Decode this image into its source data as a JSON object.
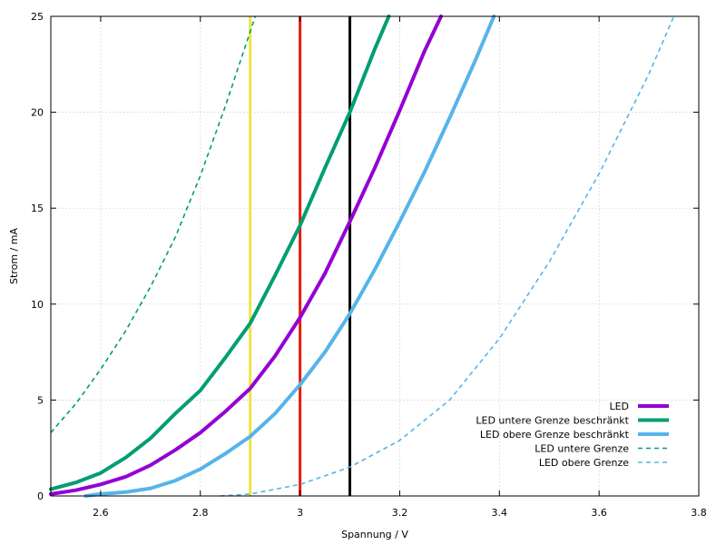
{
  "chart_data": {
    "type": "line",
    "title": "",
    "xlabel": "Spannung / V",
    "ylabel": "Strom / mA",
    "xlim": [
      2.5,
      3.8
    ],
    "ylim": [
      0,
      25
    ],
    "xticks": [
      2.6,
      2.8,
      3,
      3.2,
      3.4,
      3.6,
      3.8
    ],
    "xtick_labels": [
      "2.6",
      "2.8",
      "3",
      "3.2",
      "3.4",
      "3.6",
      "3.8"
    ],
    "yticks": [
      0,
      5,
      10,
      15,
      20,
      25
    ],
    "ytick_labels": [
      "0",
      "5",
      "10",
      "15",
      "20",
      "25"
    ],
    "grid": true,
    "legend_position": "bottom-right",
    "series": [
      {
        "name": "LED",
        "color": "#9400d3",
        "style": "solid",
        "bold": true,
        "x": [
          2.5,
          2.55,
          2.6,
          2.65,
          2.7,
          2.75,
          2.8,
          2.85,
          2.9,
          2.95,
          3.0,
          3.05,
          3.1,
          3.15,
          3.2,
          3.25,
          3.283
        ],
        "y": [
          0.1,
          0.3,
          0.6,
          1.0,
          1.6,
          2.4,
          3.3,
          4.4,
          5.6,
          7.3,
          9.3,
          11.6,
          14.3,
          17.1,
          20.1,
          23.2,
          25
        ]
      },
      {
        "name": "LED untere Grenze beschränkt",
        "color": "#009e73",
        "style": "solid",
        "bold": true,
        "x": [
          2.5,
          2.55,
          2.6,
          2.65,
          2.7,
          2.75,
          2.8,
          2.85,
          2.9,
          2.95,
          3.0,
          3.05,
          3.1,
          3.15,
          3.178
        ],
        "y": [
          0.35,
          0.7,
          1.2,
          2.0,
          3.0,
          4.3,
          5.5,
          7.2,
          9.0,
          11.5,
          14.1,
          17.1,
          20.0,
          23.3,
          25
        ]
      },
      {
        "name": "LED obere Grenze beschränkt",
        "color": "#56b4e9",
        "style": "solid",
        "bold": true,
        "x": [
          2.57,
          2.6,
          2.65,
          2.7,
          2.75,
          2.8,
          2.85,
          2.9,
          2.95,
          3.0,
          3.05,
          3.1,
          3.15,
          3.2,
          3.25,
          3.3,
          3.35,
          3.389
        ],
        "y": [
          0,
          0.1,
          0.2,
          0.4,
          0.8,
          1.4,
          2.2,
          3.1,
          4.3,
          5.8,
          7.5,
          9.5,
          11.8,
          14.3,
          16.9,
          19.7,
          22.6,
          25
        ]
      },
      {
        "name": "LED untere Grenze",
        "color": "#009e73",
        "style": "dashed",
        "bold": false,
        "x": [
          2.5,
          2.55,
          2.6,
          2.65,
          2.7,
          2.75,
          2.8,
          2.85,
          2.9,
          2.91
        ],
        "y": [
          3.3,
          4.8,
          6.6,
          8.6,
          10.9,
          13.5,
          16.7,
          20.3,
          24.2,
          25
        ]
      },
      {
        "name": "LED obere Grenze",
        "color": "#56b4e9",
        "style": "dashed",
        "bold": false,
        "x": [
          2.84,
          2.9,
          3.0,
          3.1,
          3.2,
          3.3,
          3.4,
          3.5,
          3.6,
          3.7,
          3.75
        ],
        "y": [
          0,
          0.1,
          0.6,
          1.5,
          2.9,
          5.0,
          8.2,
          12.2,
          16.8,
          22.0,
          25
        ]
      }
    ],
    "vlines": [
      {
        "x": 2.9,
        "color": "#f0e442"
      },
      {
        "x": 3.0,
        "color": "#e51e10"
      },
      {
        "x": 3.1,
        "color": "#000000"
      }
    ]
  }
}
